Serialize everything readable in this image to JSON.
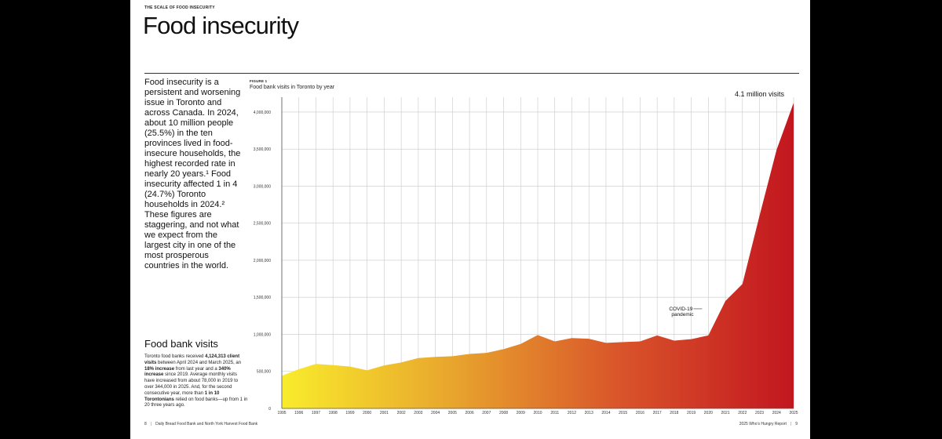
{
  "header": {
    "eyebrow": "THE SCALE OF FOOD INSECURITY",
    "title": "Food insecurity"
  },
  "intro": {
    "text": "Food insecurity is a persistent and worsening issue in Toronto and across Canada. In 2024, about 10 million people (25.5%) in the ten provinces lived in food-insecure households, the highest recorded rate in nearly 20 years.¹ Food insecurity affected 1 in 4 (24.7%) Toronto households in 2024.² These figures are staggering, and not what we expect from the largest city in one of the most prosperous countries in the world."
  },
  "visits_section": {
    "heading": "Food bank visits",
    "p1": "Toronto food banks received ",
    "b1": "4,124,313 client visits",
    "p2": " between April 2024 and March 2025, an ",
    "b2": "18% increase",
    "p3": " from last year and a ",
    "b3": "340% increase",
    "p4": " since 2019. Average monthly visits have increased from about 78,000 in 2019 to over 344,000 in 2025. And, for the second consecutive year, more than ",
    "b4": "1 in 10 Torontonians",
    "p5": " relied on food banks—up from 1 in 20 three years ago."
  },
  "figure": {
    "label": "FIGURE 1",
    "title": "Food bank visits in Toronto by year"
  },
  "chart_data": {
    "type": "area",
    "title": "Food bank visits in Toronto by year",
    "xlabel": "",
    "ylabel": "",
    "x": [
      "1995",
      "1996",
      "1997",
      "1998",
      "1999",
      "2000",
      "2001",
      "2002",
      "2003",
      "2004",
      "2005",
      "2006",
      "2007",
      "2008",
      "2009",
      "2010",
      "2011",
      "2012",
      "2013",
      "2014",
      "2015",
      "2016",
      "2017",
      "2018",
      "2019",
      "2020",
      "2021",
      "2022",
      "2023",
      "2024",
      "2025"
    ],
    "values": [
      440000,
      530000,
      600000,
      585000,
      565000,
      515000,
      580000,
      620000,
      680000,
      695000,
      705000,
      735000,
      750000,
      800000,
      870000,
      990000,
      905000,
      950000,
      940000,
      885000,
      895000,
      905000,
      985000,
      915000,
      935000,
      985000,
      1450000,
      1680000,
      2600000,
      3490000,
      4124313
    ],
    "y_ticks": [
      0,
      500000,
      1000000,
      1500000,
      2000000,
      2500000,
      3000000,
      3500000,
      4000000
    ],
    "y_tick_labels": [
      "0",
      "500,000",
      "1,000,000",
      "1,500,000",
      "2,000,000",
      "2,500,000",
      "3,000,000",
      "3,500,000",
      "4,000,000"
    ],
    "ylim": [
      0,
      4200000
    ],
    "grid": true,
    "gradient_colors": [
      "#f9ec2c",
      "#e8a52d",
      "#d9532a",
      "#c2161f"
    ],
    "annotations": [
      {
        "text": "4.1 million visits",
        "x": "2025",
        "y": 4124313
      },
      {
        "text": "COVID-19",
        "x": "2020",
        "y": 1450000
      },
      {
        "text": "pandemic",
        "x": "2020",
        "y": 1450000
      }
    ]
  },
  "footer": {
    "page_left": "8",
    "left_text": "Daily Bread Food Bank and North York Harvest Food Bank",
    "right_text": "2025 Who’s Hungry Report",
    "page_right": "9"
  }
}
